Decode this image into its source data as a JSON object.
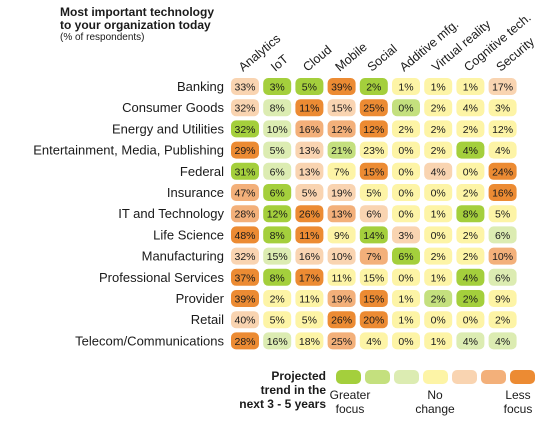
{
  "title": {
    "line1": "Most important technology",
    "line2": "to your organization today",
    "line3": "(% of respondents)"
  },
  "legend": {
    "title": [
      "Projected",
      "trend in the",
      "next 3 - 5 years"
    ],
    "greater": [
      "Greater",
      "focus"
    ],
    "none": [
      "No",
      "change"
    ],
    "less": [
      "Less",
      "focus"
    ],
    "palette": [
      "#a4cf3c",
      "#c4e07e",
      "#dcecb2",
      "#fdf4a6",
      "#f9d4b1",
      "#f3b07a",
      "#ec8b33"
    ]
  },
  "chart_data": {
    "type": "heatmap",
    "title": "Most important technology to your organization today",
    "subtitle": "(% of respondents)",
    "columns": [
      "Analytics",
      "IoT",
      "Cloud",
      "Mobile",
      "Social",
      "Additive mfg.",
      "Virtual reality",
      "Cognitive tech.",
      "Security"
    ],
    "rows": [
      "Banking",
      "Consumer Goods",
      "Energy and Utilities",
      "Entertainment, Media, Publishing",
      "Federal",
      "Insurance",
      "IT and Technology",
      "Life Science",
      "Manufacturing",
      "Professional Services",
      "Provider",
      "Retail",
      "Telecom/Communications"
    ],
    "values": [
      [
        33,
        3,
        5,
        39,
        2,
        1,
        1,
        1,
        17
      ],
      [
        32,
        8,
        11,
        15,
        25,
        0,
        2,
        4,
        3
      ],
      [
        32,
        10,
        16,
        12,
        12,
        2,
        2,
        2,
        12
      ],
      [
        29,
        5,
        13,
        21,
        23,
        0,
        2,
        4,
        4
      ],
      [
        31,
        6,
        13,
        7,
        15,
        0,
        4,
        0,
        24
      ],
      [
        47,
        6,
        5,
        19,
        5,
        0,
        0,
        2,
        16
      ],
      [
        28,
        12,
        26,
        13,
        6,
        0,
        1,
        8,
        5
      ],
      [
        48,
        8,
        11,
        9,
        14,
        3,
        0,
        2,
        6
      ],
      [
        32,
        15,
        16,
        10,
        7,
        6,
        2,
        2,
        10
      ],
      [
        37,
        8,
        17,
        11,
        15,
        0,
        1,
        4,
        6
      ],
      [
        39,
        2,
        11,
        19,
        15,
        1,
        2,
        2,
        9
      ],
      [
        40,
        5,
        5,
        26,
        20,
        1,
        0,
        0,
        2
      ],
      [
        28,
        16,
        18,
        25,
        4,
        0,
        1,
        4,
        4
      ]
    ],
    "trend_level": [
      [
        4,
        0,
        0,
        6,
        0,
        3,
        3,
        3,
        4
      ],
      [
        4,
        2,
        6,
        4,
        6,
        1,
        3,
        3,
        3
      ],
      [
        0,
        2,
        5,
        5,
        6,
        3,
        3,
        3,
        3
      ],
      [
        6,
        2,
        4,
        1,
        3,
        3,
        3,
        0,
        3
      ],
      [
        0,
        2,
        4,
        3,
        6,
        3,
        4,
        3,
        6
      ],
      [
        5,
        0,
        4,
        4,
        3,
        3,
        3,
        3,
        6
      ],
      [
        5,
        0,
        6,
        5,
        4,
        3,
        3,
        0,
        3
      ],
      [
        6,
        0,
        6,
        3,
        0,
        4,
        3,
        3,
        2
      ],
      [
        4,
        2,
        4,
        4,
        5,
        0,
        3,
        3,
        5
      ],
      [
        6,
        0,
        6,
        3,
        3,
        3,
        3,
        0,
        2
      ],
      [
        6,
        3,
        3,
        5,
        6,
        3,
        1,
        0,
        3
      ],
      [
        4,
        3,
        3,
        6,
        6,
        3,
        3,
        3,
        3
      ],
      [
        6,
        2,
        3,
        5,
        3,
        3,
        3,
        2,
        2
      ]
    ]
  }
}
